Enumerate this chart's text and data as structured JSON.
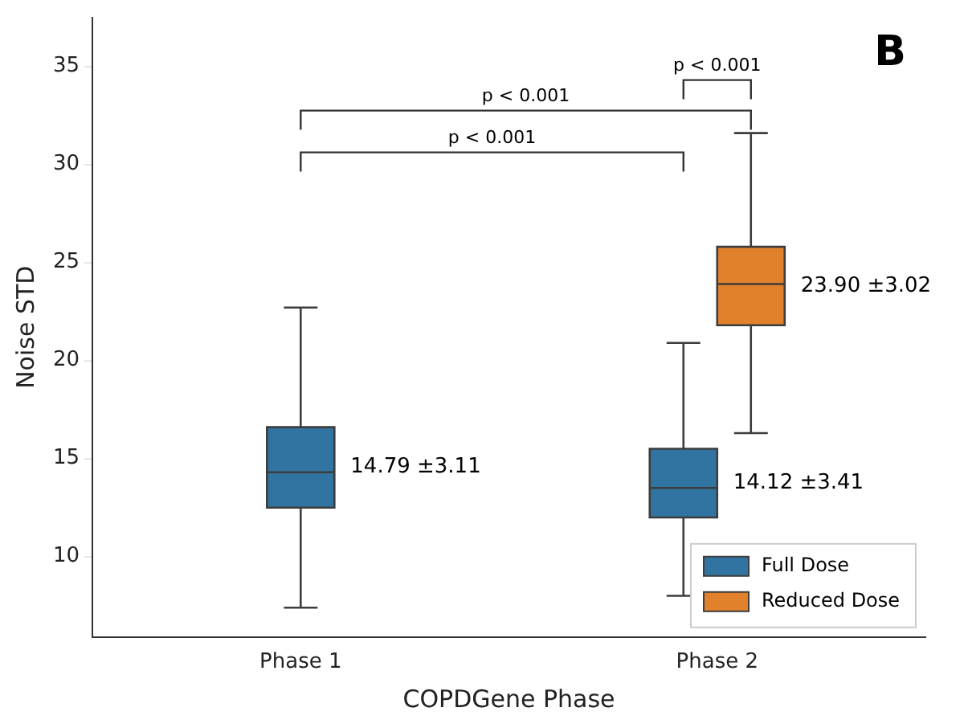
{
  "chart_data": {
    "type": "box",
    "title": "B",
    "xlabel": "COPDGene Phase",
    "ylabel": "Noise STD",
    "categories": [
      "Phase 1",
      "Phase 2"
    ],
    "series": [
      {
        "name": "Full Dose",
        "color": "#3274a1",
        "boxes": [
          {
            "low": 7.4,
            "q1": 12.5,
            "median": 14.3,
            "q3": 16.6,
            "high": 22.7
          },
          {
            "low": 8.0,
            "q1": 12.0,
            "median": 13.5,
            "q3": 15.5,
            "high": 20.9
          }
        ]
      },
      {
        "name": "Reduced Dose",
        "color": "#e1812c",
        "boxes": [
          null,
          {
            "low": 16.3,
            "q1": 21.8,
            "median": 23.9,
            "q3": 25.8,
            "high": 31.6
          }
        ]
      }
    ],
    "ylim": [
      5.9,
      37.5
    ],
    "yticks": [
      10,
      15,
      20,
      25,
      30,
      35
    ],
    "grid": false,
    "legend": "bottom right",
    "annotations": [
      "14.79 ±3.11",
      "14.12 ±3.41",
      "23.90 ±3.02",
      "p < 0.001",
      "p < 0.001",
      "p < 0.001"
    ]
  }
}
